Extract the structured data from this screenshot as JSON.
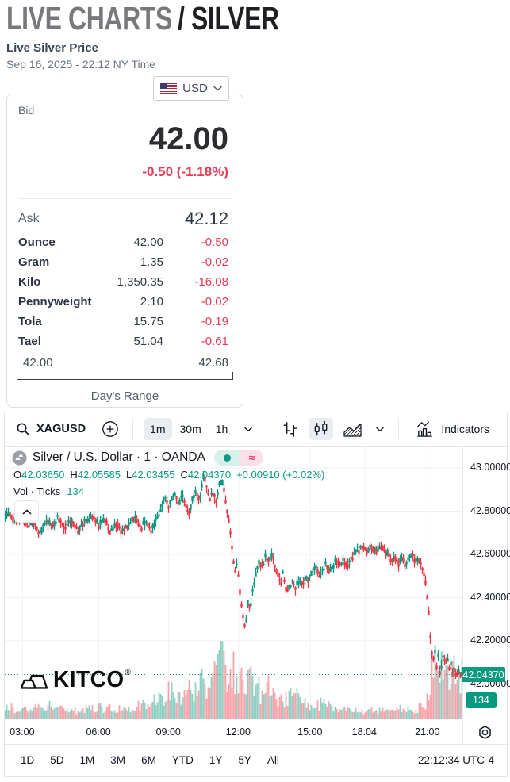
{
  "header": {
    "title_gray": "LIVE CHARTS",
    "title_dark": "/ SILVER",
    "subtitle": "Live Silver Price",
    "timestamp": "Sep 16, 2025 - 22:12 NY Time"
  },
  "currency_selector": {
    "label": "USD",
    "flag": "us-flag"
  },
  "quote": {
    "bid_label": "Bid",
    "bid": "42.00",
    "change": "-0.50 (-1.18%)",
    "ask_label": "Ask",
    "ask": "42.12",
    "rows": [
      {
        "label": "Ounce",
        "value": "42.00",
        "change": "-0.50"
      },
      {
        "label": "Gram",
        "value": "1.35",
        "change": "-0.02"
      },
      {
        "label": "Kilo",
        "value": "1,350.35",
        "change": "-16.08"
      },
      {
        "label": "Pennyweight",
        "value": "2.10",
        "change": "-0.02"
      },
      {
        "label": "Tola",
        "value": "15.75",
        "change": "-0.19"
      },
      {
        "label": "Tael",
        "value": "51.04",
        "change": "-0.61"
      }
    ],
    "range_low": "42.00",
    "range_high": "42.68",
    "range_label": "Day's Range"
  },
  "chart_widget": {
    "toolbar": {
      "symbol": "XAGUSD",
      "intervals": [
        "1m",
        "30m",
        "1h"
      ],
      "selected_interval": "1m",
      "selected_style": "candles",
      "indicators_label": "Indicators"
    },
    "legend": {
      "title": "Silver / U.S. Dollar · 1 · OANDA",
      "vol_label": "Vol · Ticks",
      "vol_value": "134"
    },
    "watermark": "KITCO",
    "watermark_reg": "®",
    "bottom": {
      "ranges": [
        "1D",
        "5D",
        "1M",
        "3M",
        "6M",
        "YTD",
        "1Y",
        "5Y",
        "All"
      ],
      "clock": "22:12:34 UTC-4"
    }
  },
  "chart_data": {
    "type": "candlestick",
    "title": "Silver / U.S. Dollar · 1 · OANDA",
    "ohlc_items": [
      {
        "k": "O",
        "v": "42.03650"
      },
      {
        "k": "H",
        "v": "42.05585"
      },
      {
        "k": "L",
        "v": "42.03455"
      },
      {
        "k": "C",
        "v": "42.04370"
      }
    ],
    "change_label": "+0.00910 (+0.02%)",
    "open": 42.0365,
    "high": 42.05585,
    "low": 42.03455,
    "close": 42.0437,
    "volume_ticks": 134,
    "current_price": 42.0437,
    "current_price_label": "42.04370",
    "volume_badge": "134",
    "ylim": [
      41.84,
      43.099
    ],
    "y_ticks": [
      {
        "label": "43.00000",
        "value": 43.0
      },
      {
        "label": "42.80000",
        "value": 42.8
      },
      {
        "label": "42.60000",
        "value": 42.6
      },
      {
        "label": "42.40000",
        "value": 42.4
      },
      {
        "label": "42.20000",
        "value": 42.2
      },
      {
        "label": "42.00000",
        "value": 42.0
      }
    ],
    "x_ticks": [
      {
        "label": "03:00",
        "t": 0.038
      },
      {
        "label": "06:00",
        "t": 0.205
      },
      {
        "label": "09:00",
        "t": 0.358
      },
      {
        "label": "12:00",
        "t": 0.511
      },
      {
        "label": "15:00",
        "t": 0.668
      },
      {
        "label": "18:04",
        "t": 0.787
      },
      {
        "label": "21:00",
        "t": 0.925
      }
    ],
    "price_path": [
      [
        0.0,
        42.77
      ],
      [
        0.01,
        42.79
      ],
      [
        0.022,
        42.75
      ],
      [
        0.035,
        42.78
      ],
      [
        0.05,
        42.72
      ],
      [
        0.06,
        42.75
      ],
      [
        0.075,
        42.7
      ],
      [
        0.09,
        42.76
      ],
      [
        0.105,
        42.73
      ],
      [
        0.115,
        42.77
      ],
      [
        0.13,
        42.72
      ],
      [
        0.145,
        42.76
      ],
      [
        0.16,
        42.71
      ],
      [
        0.175,
        42.75
      ],
      [
        0.19,
        42.78
      ],
      [
        0.205,
        42.74
      ],
      [
        0.215,
        42.77
      ],
      [
        0.23,
        42.71
      ],
      [
        0.245,
        42.74
      ],
      [
        0.255,
        42.7
      ],
      [
        0.27,
        42.74
      ],
      [
        0.285,
        42.77
      ],
      [
        0.295,
        42.72
      ],
      [
        0.31,
        42.75
      ],
      [
        0.32,
        42.71
      ],
      [
        0.33,
        42.76
      ],
      [
        0.34,
        42.8
      ],
      [
        0.35,
        42.86
      ],
      [
        0.358,
        42.82
      ],
      [
        0.365,
        42.85
      ],
      [
        0.372,
        42.88
      ],
      [
        0.38,
        42.83
      ],
      [
        0.388,
        42.87
      ],
      [
        0.395,
        42.82
      ],
      [
        0.402,
        42.79
      ],
      [
        0.41,
        42.85
      ],
      [
        0.418,
        42.89
      ],
      [
        0.425,
        42.84
      ],
      [
        0.43,
        42.9
      ],
      [
        0.435,
        42.97
      ],
      [
        0.442,
        42.9
      ],
      [
        0.448,
        42.86
      ],
      [
        0.455,
        42.88
      ],
      [
        0.462,
        42.85
      ],
      [
        0.468,
        42.92
      ],
      [
        0.474,
        42.95
      ],
      [
        0.48,
        42.88
      ],
      [
        0.486,
        42.8
      ],
      [
        0.492,
        42.72
      ],
      [
        0.498,
        42.6
      ],
      [
        0.503,
        42.52
      ],
      [
        0.508,
        42.56
      ],
      [
        0.513,
        42.44
      ],
      [
        0.518,
        42.36
      ],
      [
        0.523,
        42.28
      ],
      [
        0.527,
        42.27
      ],
      [
        0.532,
        42.4
      ],
      [
        0.537,
        42.34
      ],
      [
        0.543,
        42.45
      ],
      [
        0.55,
        42.52
      ],
      [
        0.557,
        42.57
      ],
      [
        0.563,
        42.54
      ],
      [
        0.57,
        42.59
      ],
      [
        0.577,
        42.56
      ],
      [
        0.583,
        42.6
      ],
      [
        0.59,
        42.55
      ],
      [
        0.597,
        42.5
      ],
      [
        0.603,
        42.46
      ],
      [
        0.608,
        42.51
      ],
      [
        0.613,
        42.45
      ],
      [
        0.62,
        42.43
      ],
      [
        0.628,
        42.47
      ],
      [
        0.635,
        42.44
      ],
      [
        0.643,
        42.48
      ],
      [
        0.65,
        42.46
      ],
      [
        0.658,
        42.5
      ],
      [
        0.665,
        42.48
      ],
      [
        0.672,
        42.52
      ],
      [
        0.68,
        42.55
      ],
      [
        0.688,
        42.5
      ],
      [
        0.695,
        42.53
      ],
      [
        0.703,
        42.56
      ],
      [
        0.71,
        42.52
      ],
      [
        0.718,
        42.55
      ],
      [
        0.725,
        42.58
      ],
      [
        0.732,
        42.55
      ],
      [
        0.74,
        42.57
      ],
      [
        0.748,
        42.54
      ],
      [
        0.755,
        42.57
      ],
      [
        0.763,
        42.6
      ],
      [
        0.772,
        42.62
      ],
      [
        0.78,
        42.63
      ],
      [
        0.79,
        42.62
      ],
      [
        0.8,
        42.63
      ],
      [
        0.81,
        42.62
      ],
      [
        0.82,
        42.63
      ],
      [
        0.83,
        42.62
      ],
      [
        0.838,
        42.6
      ],
      [
        0.845,
        42.57
      ],
      [
        0.853,
        42.59
      ],
      [
        0.86,
        42.56
      ],
      [
        0.868,
        42.58
      ],
      [
        0.875,
        42.55
      ],
      [
        0.883,
        42.58
      ],
      [
        0.89,
        42.6
      ],
      [
        0.897,
        42.57
      ],
      [
        0.903,
        42.59
      ],
      [
        0.91,
        42.56
      ],
      [
        0.916,
        42.52
      ],
      [
        0.92,
        42.47
      ],
      [
        0.924,
        42.4
      ],
      [
        0.928,
        42.3
      ],
      [
        0.932,
        42.18
      ],
      [
        0.936,
        42.1
      ],
      [
        0.94,
        42.17
      ],
      [
        0.944,
        42.08
      ],
      [
        0.948,
        42.14
      ],
      [
        0.952,
        42.04
      ],
      [
        0.956,
        42.11
      ],
      [
        0.96,
        42.15
      ],
      [
        0.964,
        42.08
      ],
      [
        0.968,
        42.12
      ],
      [
        0.972,
        42.06
      ],
      [
        0.976,
        42.1
      ],
      [
        0.98,
        42.03
      ],
      [
        0.984,
        42.07
      ],
      [
        0.988,
        42.02
      ],
      [
        0.992,
        42.06
      ],
      [
        1.0,
        42.044
      ]
    ],
    "volume_envelope": [
      [
        0.0,
        0.18
      ],
      [
        0.05,
        0.15
      ],
      [
        0.1,
        0.2
      ],
      [
        0.15,
        0.14
      ],
      [
        0.2,
        0.18
      ],
      [
        0.25,
        0.16
      ],
      [
        0.3,
        0.22
      ],
      [
        0.34,
        0.3
      ],
      [
        0.36,
        0.45
      ],
      [
        0.38,
        0.35
      ],
      [
        0.4,
        0.5
      ],
      [
        0.42,
        0.45
      ],
      [
        0.435,
        0.6
      ],
      [
        0.45,
        0.55
      ],
      [
        0.465,
        0.75
      ],
      [
        0.475,
        1.0
      ],
      [
        0.49,
        0.7
      ],
      [
        0.5,
        0.8
      ],
      [
        0.51,
        0.65
      ],
      [
        0.52,
        0.85
      ],
      [
        0.53,
        0.7
      ],
      [
        0.545,
        0.55
      ],
      [
        0.56,
        0.45
      ],
      [
        0.575,
        0.5
      ],
      [
        0.59,
        0.4
      ],
      [
        0.61,
        0.32
      ],
      [
        0.63,
        0.45
      ],
      [
        0.65,
        0.28
      ],
      [
        0.67,
        0.22
      ],
      [
        0.7,
        0.25
      ],
      [
        0.72,
        0.18
      ],
      [
        0.75,
        0.15
      ],
      [
        0.78,
        0.12
      ],
      [
        0.81,
        0.14
      ],
      [
        0.84,
        0.12
      ],
      [
        0.87,
        0.16
      ],
      [
        0.9,
        0.14
      ],
      [
        0.92,
        0.25
      ],
      [
        0.93,
        0.6
      ],
      [
        0.94,
        0.85
      ],
      [
        0.95,
        0.75
      ],
      [
        0.96,
        0.9
      ],
      [
        0.97,
        0.7
      ],
      [
        0.98,
        0.8
      ],
      [
        0.99,
        0.65
      ],
      [
        1.0,
        0.75
      ]
    ],
    "colors": {
      "up": "#089981",
      "down": "#f23645",
      "grid": "#eef1f6",
      "text": "#131722"
    }
  }
}
